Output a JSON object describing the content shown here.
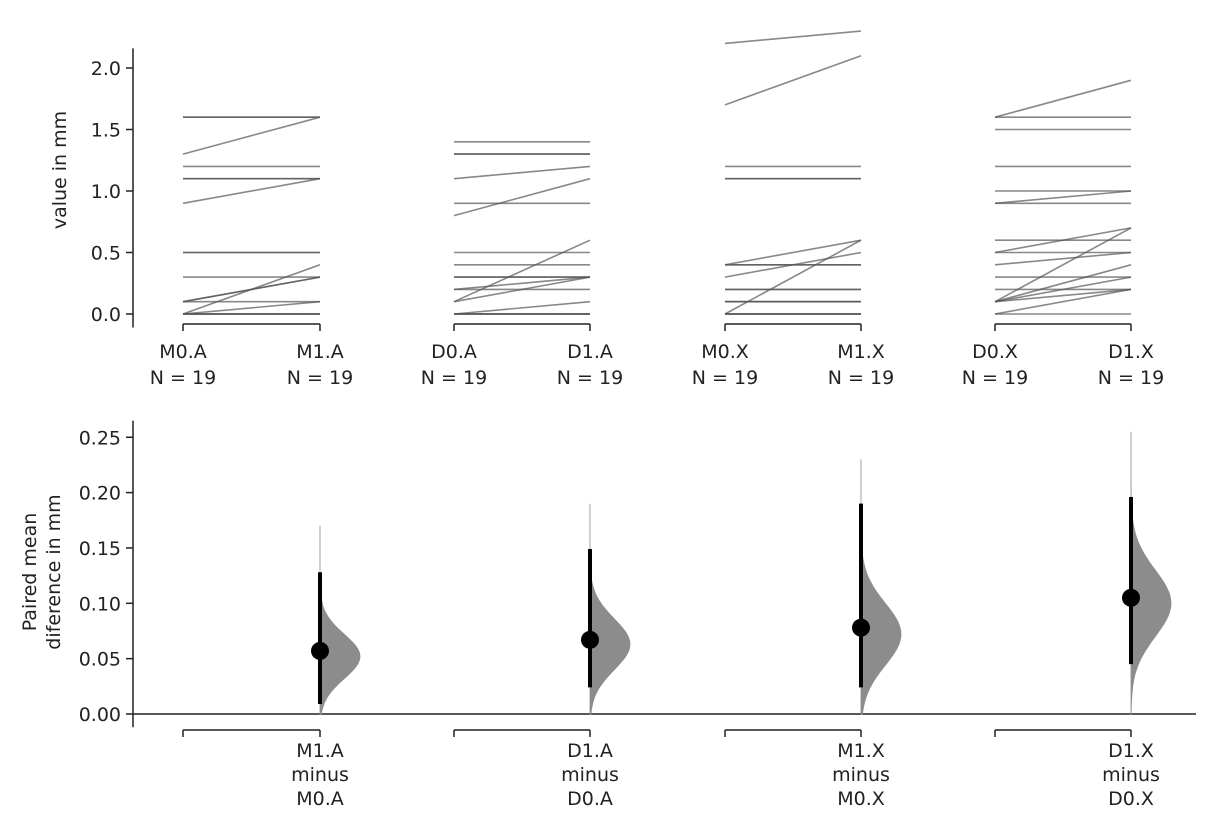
{
  "chart_data": [
    {
      "type": "line",
      "subtype": "paired-slopegraph",
      "ylabel": "value in mm",
      "ylim": [
        -0.1,
        2.4
      ],
      "yticks": [
        "0.0",
        "0.5",
        "1.0",
        "1.5",
        "2.0"
      ],
      "groups": [
        {
          "labels": [
            "M0.A",
            "M1.A"
          ],
          "n_label": "N = 19",
          "pairs": [
            [
              0,
              0
            ],
            [
              0,
              0
            ],
            [
              0,
              0
            ],
            [
              0,
              0
            ],
            [
              0,
              0.1
            ],
            [
              0.1,
              0.1
            ],
            [
              0.1,
              0.3
            ],
            [
              0,
              0.4
            ],
            [
              0.3,
              0.3
            ],
            [
              0.5,
              0.5
            ],
            [
              0.5,
              0.5
            ],
            [
              0.9,
              1.1
            ],
            [
              1.1,
              1.1
            ],
            [
              1.1,
              1.1
            ],
            [
              1.2,
              1.2
            ],
            [
              1.3,
              1.6
            ],
            [
              1.6,
              1.6
            ],
            [
              1.6,
              1.6
            ],
            [
              0.1,
              0.3
            ]
          ]
        },
        {
          "labels": [
            "D0.A",
            "D1.A"
          ],
          "n_label": "N = 19",
          "pairs": [
            [
              0,
              0
            ],
            [
              0,
              0
            ],
            [
              0,
              0
            ],
            [
              0,
              0.1
            ],
            [
              0.1,
              0.3
            ],
            [
              0.1,
              0.6
            ],
            [
              0.2,
              0.3
            ],
            [
              0.3,
              0.3
            ],
            [
              0.4,
              0.4
            ],
            [
              0.5,
              0.5
            ],
            [
              0.8,
              1.1
            ],
            [
              0.9,
              0.9
            ],
            [
              1.1,
              1.2
            ],
            [
              1.3,
              1.3
            ],
            [
              1.4,
              1.4
            ],
            [
              0.2,
              0.2
            ],
            [
              0,
              0
            ],
            [
              0.3,
              0.3
            ],
            [
              1.3,
              1.3
            ]
          ]
        },
        {
          "labels": [
            "M0.X",
            "M1.X"
          ],
          "n_label": "N = 19",
          "pairs": [
            [
              0,
              0
            ],
            [
              0,
              0
            ],
            [
              0,
              0
            ],
            [
              0,
              0.6
            ],
            [
              0.1,
              0.1
            ],
            [
              0.1,
              0.1
            ],
            [
              0.2,
              0.2
            ],
            [
              0.3,
              0.5
            ],
            [
              0.4,
              0.6
            ],
            [
              0.4,
              0.4
            ],
            [
              1.1,
              1.1
            ],
            [
              1.1,
              1.1
            ],
            [
              1.2,
              1.2
            ],
            [
              1.7,
              2.1
            ],
            [
              2.2,
              2.3
            ],
            [
              0,
              0
            ],
            [
              0.2,
              0.2
            ],
            [
              0.1,
              0.1
            ],
            [
              0.4,
              0.4
            ]
          ]
        },
        {
          "labels": [
            "D0.X",
            "D1.X"
          ],
          "n_label": "N = 19",
          "pairs": [
            [
              0,
              0
            ],
            [
              0,
              0.2
            ],
            [
              0.1,
              0.7
            ],
            [
              0.1,
              0.4
            ],
            [
              0.1,
              0.3
            ],
            [
              0.2,
              0.2
            ],
            [
              0.4,
              0.5
            ],
            [
              0.5,
              0.7
            ],
            [
              0.5,
              0.5
            ],
            [
              0.6,
              0.6
            ],
            [
              0.9,
              1.0
            ],
            [
              0.9,
              0.9
            ],
            [
              1.0,
              1.0
            ],
            [
              1.2,
              1.2
            ],
            [
              1.5,
              1.5
            ],
            [
              1.6,
              1.9
            ],
            [
              1.6,
              1.6
            ],
            [
              0.3,
              0.3
            ],
            [
              0.1,
              0.2
            ]
          ]
        }
      ]
    },
    {
      "type": "estimation",
      "ylabel": [
        "Paired mean",
        "diference in mm"
      ],
      "ylim": [
        -0.012,
        0.265
      ],
      "yticks": [
        "0.00",
        "0.05",
        "0.10",
        "0.15",
        "0.20",
        "0.25"
      ],
      "comparisons": [
        {
          "label": [
            "M1.A",
            "minus",
            "M0.A"
          ],
          "mean": 0.057,
          "ci": [
            0.009,
            0.128
          ],
          "dist_range": [
            0.0,
            0.17
          ],
          "dist_peak": 0.052,
          "dist_sd": 0.02
        },
        {
          "label": [
            "D1.A",
            "minus",
            "D0.A"
          ],
          "mean": 0.067,
          "ci": [
            0.024,
            0.149
          ],
          "dist_range": [
            0.0,
            0.19
          ],
          "dist_peak": 0.063,
          "dist_sd": 0.023
        },
        {
          "label": [
            "M1.X",
            "minus",
            "M0.X"
          ],
          "mean": 0.078,
          "ci": [
            0.024,
            0.19
          ],
          "dist_range": [
            0.0,
            0.23
          ],
          "dist_peak": 0.072,
          "dist_sd": 0.028
        },
        {
          "label": [
            "D1.X",
            "minus",
            "D0.X"
          ],
          "mean": 0.105,
          "ci": [
            0.045,
            0.196
          ],
          "dist_range": [
            0.0,
            0.255
          ],
          "dist_peak": 0.1,
          "dist_sd": 0.03
        }
      ]
    }
  ]
}
